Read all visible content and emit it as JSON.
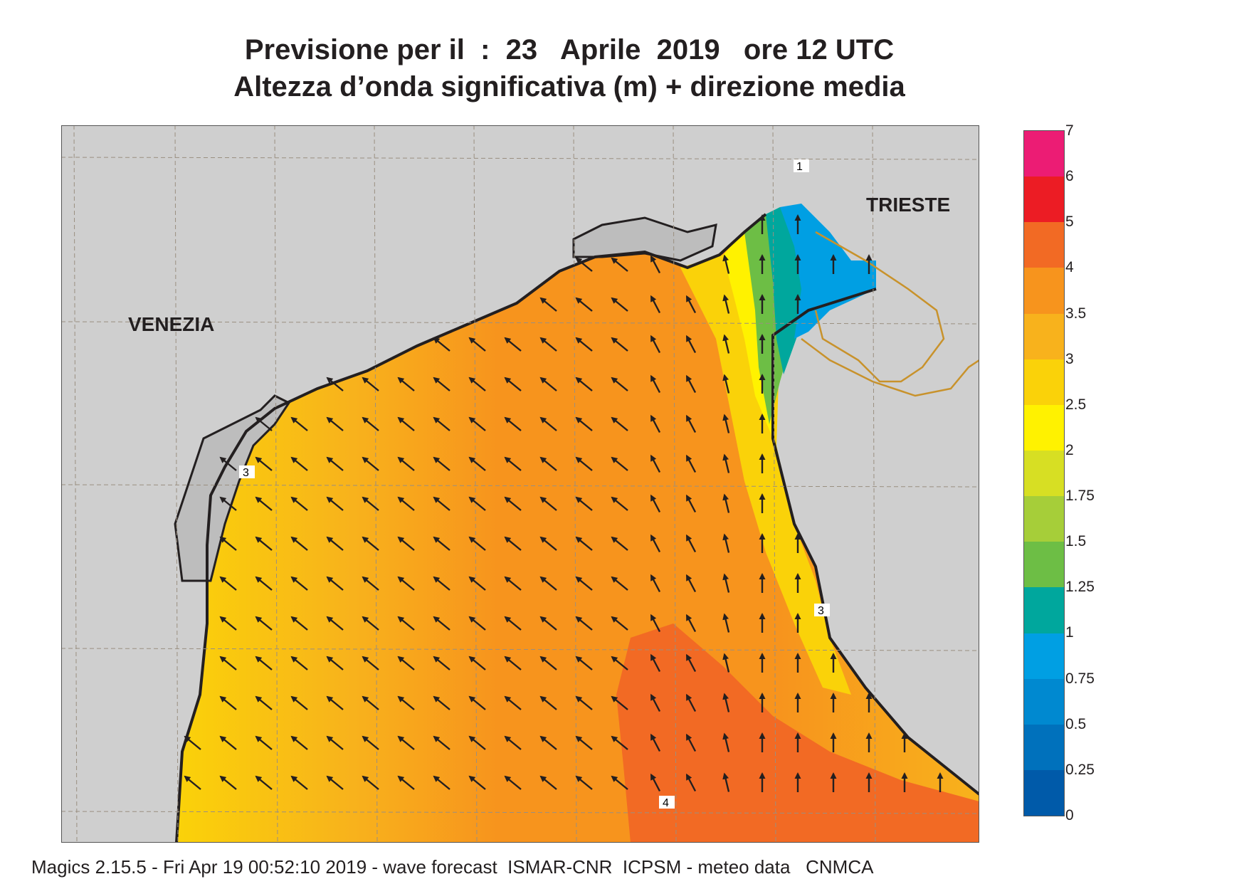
{
  "title": {
    "line1": "Previsione per il  :  23   Aprile  2019   ore 12 UTC",
    "line2": "Altezza d’onda significativa (m) + direzione media"
  },
  "map": {
    "place_labels": {
      "venezia": "VENEZIA",
      "trieste": "TRIESTE"
    },
    "contour_labels": [
      "1",
      "3",
      "3",
      "4"
    ],
    "colors": {
      "land": "#cfcfcf",
      "coast": "#231f20",
      "border": "#c8922b",
      "grid": "#9a8f80",
      "arrow": "#231f20"
    }
  },
  "colorbar": {
    "levels": [
      "7",
      "6",
      "5",
      "4",
      "3.5",
      "3",
      "2.5",
      "2",
      "1.75",
      "1.5",
      "1.25",
      "1",
      "0.75",
      "0.5",
      "0.25",
      "0"
    ],
    "colors": [
      "#ec1c74",
      "#ec1c24",
      "#f26a24",
      "#f7941d",
      "#f8b21c",
      "#fad209",
      "#fff200",
      "#d7df23",
      "#a6ce39",
      "#6dbe45",
      "#00a79d",
      "#009fe3",
      "#0089d0",
      "#0071bc",
      "#005aa9"
    ]
  },
  "footer": "Magics 2.15.5 - Fri Apr 19 00:52:10 2019 - wave forecast  ISMAR-CNR  ICPSM - meteo data   CNMCA"
}
